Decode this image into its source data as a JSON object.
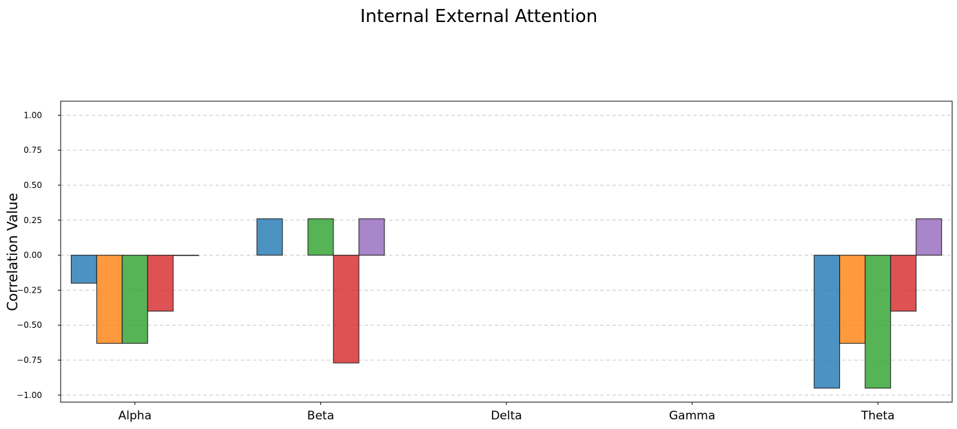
{
  "chart_data": {
    "type": "bar",
    "title": "Internal External Attention",
    "ylabel": "Correlation Value",
    "xlabel": "",
    "categories": [
      "Alpha",
      "Beta",
      "Delta",
      "Gamma",
      "Theta"
    ],
    "ylim": [
      -1.05,
      1.1
    ],
    "yticks": [
      1.0,
      0.75,
      0.5,
      0.25,
      0.0,
      -0.25,
      -0.5,
      -0.75,
      -1.0
    ],
    "ytick_labels": [
      "1.00",
      "0.75",
      "0.50",
      "0.25",
      "0.00",
      "−0.25",
      "−0.50",
      "−0.75",
      "−1.00"
    ],
    "grid": "horizontal dashed",
    "legend": "none",
    "series": [
      {
        "color": "#1f77b4",
        "values": [
          -0.2,
          0.26,
          null,
          null,
          -0.95
        ]
      },
      {
        "color": "#ff7f0e",
        "values": [
          -0.63,
          null,
          null,
          null,
          -0.63
        ]
      },
      {
        "color": "#2ca02c",
        "values": [
          -0.63,
          0.26,
          null,
          null,
          -0.95
        ]
      },
      {
        "color": "#d62728",
        "values": [
          -0.4,
          -0.77,
          null,
          null,
          -0.4
        ]
      },
      {
        "color": "#9467bd",
        "values": [
          0.0,
          0.26,
          null,
          null,
          0.26
        ]
      }
    ]
  }
}
